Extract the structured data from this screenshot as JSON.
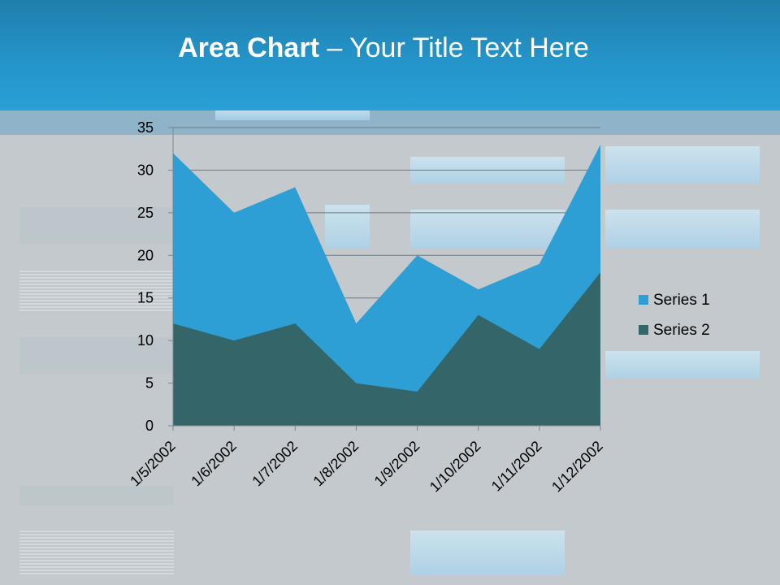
{
  "slide": {
    "title_bold": "Area Chart",
    "title_rest": " – Your Title Text Here"
  },
  "colors": {
    "header": "#2494c9",
    "background": "#c3c9cc",
    "series1": "#2e9fd4",
    "series2": "#346669"
  },
  "chart_data": {
    "type": "area",
    "title": "",
    "xlabel": "",
    "ylabel": "",
    "x": [
      "1/5/2002",
      "1/6/2002",
      "1/7/2002",
      "1/8/2002",
      "1/9/2002",
      "1/10/2002",
      "1/11/2002",
      "1/12/2002"
    ],
    "series": [
      {
        "name": "Series 1",
        "values": [
          32,
          25,
          28,
          12,
          20,
          16,
          19,
          33
        ],
        "color": "#2e9fd4"
      },
      {
        "name": "Series 2",
        "values": [
          12,
          10,
          12,
          5,
          4,
          13,
          9,
          18
        ],
        "color": "#346669"
      }
    ],
    "ylim": [
      0,
      35
    ],
    "yticks": [
      0,
      5,
      10,
      15,
      20,
      25,
      30,
      35
    ],
    "grid": true,
    "legend_position": "right",
    "stacked": false
  }
}
